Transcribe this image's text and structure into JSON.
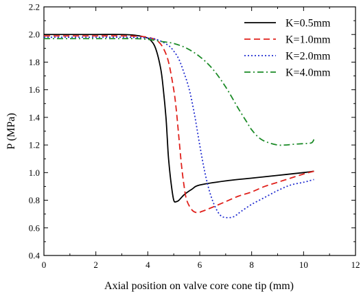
{
  "chart_data": {
    "type": "line",
    "title": "",
    "xlabel": "Axial position on valve core cone tip (mm)",
    "ylabel": "P (MPa)",
    "xlim": [
      0,
      12
    ],
    "ylim": [
      0.4,
      2.2
    ],
    "xticks": [
      0,
      2,
      4,
      6,
      8,
      10,
      12
    ],
    "yticks": [
      0.4,
      0.6,
      0.8,
      1.0,
      1.2,
      1.4,
      1.6,
      1.8,
      2.0,
      2.2
    ],
    "xtick_labels": [
      "0",
      "2",
      "4",
      "6",
      "8",
      "10",
      "12"
    ],
    "ytick_labels": [
      "0.4",
      "0.6",
      "0.8",
      "1.0",
      "1.2",
      "1.4",
      "1.6",
      "1.8",
      "2.0",
      "2.2"
    ],
    "grid": false,
    "legend_position": "top-right",
    "series": [
      {
        "name": "K=0.5mm",
        "color": "#000000",
        "dash": "solid",
        "x": [
          0,
          1,
          2,
          3,
          3.5,
          3.9,
          4.1,
          4.3,
          4.5,
          4.6,
          4.7,
          4.75,
          4.8,
          4.9,
          5.0,
          5.1,
          5.2,
          5.4,
          5.7,
          6.0,
          7.0,
          8.0,
          9.0,
          10.0,
          10.4
        ],
        "y": [
          2.0,
          2.0,
          2.0,
          2.0,
          1.995,
          1.98,
          1.96,
          1.9,
          1.75,
          1.6,
          1.4,
          1.25,
          1.1,
          0.92,
          0.8,
          0.79,
          0.8,
          0.84,
          0.88,
          0.91,
          0.94,
          0.96,
          0.98,
          1.0,
          1.01
        ]
      },
      {
        "name": "K=1.0mm",
        "color": "#e0201b",
        "dash": "dashed",
        "x": [
          0,
          2,
          3,
          3.8,
          4.2,
          4.4,
          4.6,
          4.8,
          5.0,
          5.1,
          5.2,
          5.3,
          5.4,
          5.5,
          5.7,
          5.9,
          6.1,
          6.5,
          7.0,
          7.5,
          8.0,
          8.5,
          9.0,
          9.5,
          10.0,
          10.4
        ],
        "y": [
          1.99,
          1.99,
          1.99,
          1.985,
          1.97,
          1.95,
          1.9,
          1.8,
          1.6,
          1.45,
          1.25,
          1.05,
          0.9,
          0.8,
          0.73,
          0.71,
          0.72,
          0.75,
          0.79,
          0.83,
          0.86,
          0.9,
          0.93,
          0.96,
          0.99,
          1.01
        ]
      },
      {
        "name": "K=2.0mm",
        "color": "#1f2bd0",
        "dash": "dotted",
        "x": [
          0,
          2,
          3,
          4.0,
          4.4,
          4.8,
          5.0,
          5.2,
          5.4,
          5.6,
          5.8,
          6.0,
          6.2,
          6.4,
          6.6,
          6.8,
          7.0,
          7.3,
          7.6,
          8.0,
          8.5,
          9.0,
          9.5,
          10.0,
          10.4
        ],
        "y": [
          1.98,
          1.98,
          1.98,
          1.975,
          1.96,
          1.92,
          1.88,
          1.82,
          1.72,
          1.6,
          1.42,
          1.2,
          1.0,
          0.85,
          0.75,
          0.69,
          0.675,
          0.68,
          0.72,
          0.77,
          0.82,
          0.87,
          0.91,
          0.93,
          0.95
        ]
      },
      {
        "name": "K=4.0mm",
        "color": "#1a8a26",
        "dash": "dashdot",
        "x": [
          0,
          1,
          2,
          3,
          3.5,
          4.0,
          4.5,
          5.0,
          5.5,
          6.0,
          6.5,
          7.0,
          7.5,
          7.8,
          8.0,
          8.3,
          8.6,
          9.0,
          9.3,
          9.6,
          10.0,
          10.3,
          10.4
        ],
        "y": [
          1.97,
          1.97,
          1.97,
          1.97,
          1.97,
          1.965,
          1.95,
          1.935,
          1.9,
          1.84,
          1.75,
          1.62,
          1.46,
          1.37,
          1.31,
          1.25,
          1.22,
          1.2,
          1.2,
          1.205,
          1.21,
          1.215,
          1.24
        ]
      }
    ]
  }
}
